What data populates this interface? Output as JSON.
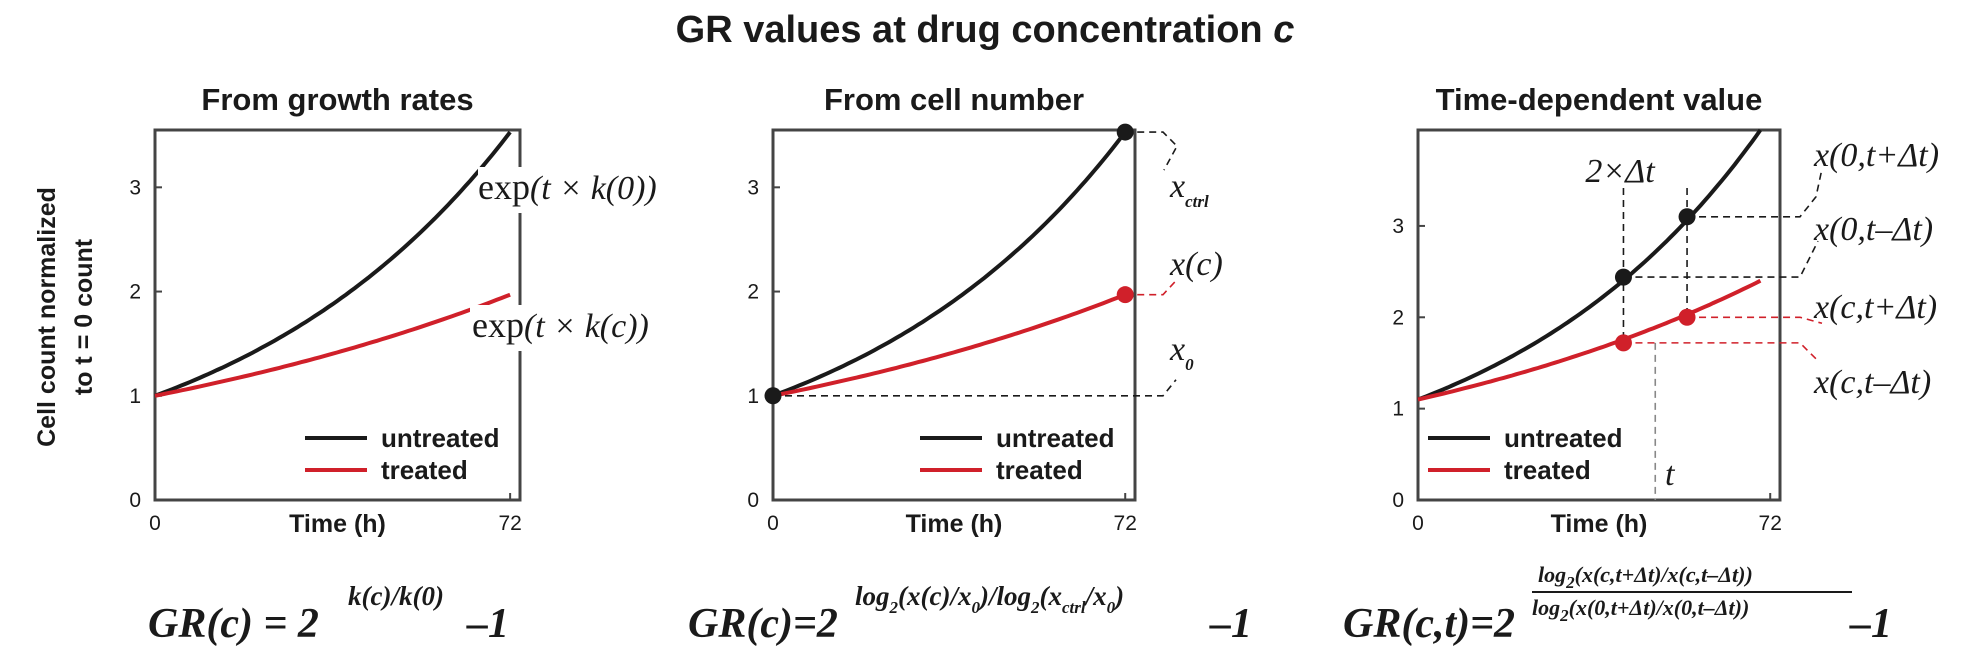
{
  "figure_title": "GR values at drug concentration c",
  "y_axis_label_line1": "Cell count normalized",
  "y_axis_label_line2": "to t = 0 count",
  "colors": {
    "untreated": "#1a1a1a",
    "treated": "#d0202a",
    "axes": "#444444"
  },
  "chart_data": [
    {
      "type": "line",
      "title": "From growth rates",
      "xlabel": "Time (h)",
      "ylabel": "Cell count normalized to t = 0 count",
      "xticks": [
        0,
        72
      ],
      "yticks": [
        0,
        1,
        2,
        3
      ],
      "xlim": [
        0,
        74
      ],
      "ylim": [
        0,
        3.55
      ],
      "legend": "bottom-right",
      "series": [
        {
          "name": "untreated",
          "x": [
            0,
            72
          ],
          "y": [
            1,
            3.53
          ],
          "curve": "exponential"
        },
        {
          "name": "treated",
          "x": [
            0,
            72
          ],
          "y": [
            1,
            1.97
          ],
          "curve": "exponential"
        }
      ],
      "annotations": [
        "exp(t × k(0))",
        "exp(t × k(c))"
      ]
    },
    {
      "type": "line",
      "title": "From cell number",
      "xlabel": "Time (h)",
      "xticks": [
        0,
        72
      ],
      "yticks": [
        0,
        1,
        2,
        3
      ],
      "xlim": [
        0,
        74
      ],
      "ylim": [
        0,
        3.55
      ],
      "legend": "bottom-right",
      "series": [
        {
          "name": "untreated",
          "x": [
            0,
            72
          ],
          "y": [
            1,
            3.53
          ],
          "curve": "exponential"
        },
        {
          "name": "treated",
          "x": [
            0,
            72
          ],
          "y": [
            1,
            1.97
          ],
          "curve": "exponential"
        }
      ],
      "markers": [
        {
          "series": "untreated",
          "x": 0,
          "y": 1
        },
        {
          "series": "untreated",
          "x": 72,
          "y": 3.53
        },
        {
          "series": "treated",
          "x": 72,
          "y": 1.97
        }
      ],
      "annotations": [
        "x_ctrl",
        "x(c)",
        "x_0"
      ]
    },
    {
      "type": "line",
      "title": "Time-dependent value",
      "xlabel": "Time (h)",
      "xticks": [
        0,
        72
      ],
      "yticks": [
        0,
        1,
        2,
        3
      ],
      "xlim": [
        0,
        74
      ],
      "ylim": [
        0,
        4.05
      ],
      "legend": "bottom-left",
      "series": [
        {
          "name": "untreated",
          "x": [
            0,
            70
          ],
          "y": [
            1.1,
            4.05
          ],
          "curve": "exponential"
        },
        {
          "name": "treated",
          "x": [
            0,
            70
          ],
          "y": [
            1.1,
            2.4
          ],
          "curve": "exponential"
        }
      ],
      "markers": [
        {
          "series": "untreated",
          "x": 42,
          "y": 2.44
        },
        {
          "series": "untreated",
          "x": 55,
          "y": 3.1
        },
        {
          "series": "treated",
          "x": 42,
          "y": 1.72
        },
        {
          "series": "treated",
          "x": 55,
          "y": 2.0
        }
      ],
      "t_marker_x": 48.5,
      "annotations": [
        "2×Δt",
        "t",
        "x(0,t+Δt)",
        "x(0,t–Δt)",
        "x(c,t+Δt)",
        "x(c,t–Δt)"
      ]
    }
  ],
  "anno_text": {
    "p1_top_a": "exp",
    "p1_top_b": "(t × k(0))",
    "p1_bot_a": "exp",
    "p1_bot_b": "(t × k(c))",
    "p2_xctrl": "x",
    "p2_xctrl_sub": "ctrl",
    "p2_xc": "x(c)",
    "p2_x0": "x",
    "p2_x0_sub": "0",
    "p3_twodt": "2×Δt",
    "p3_t": "t",
    "p3_a": "x(0,t+Δt)",
    "p3_b": "x(0,t–Δt)",
    "p3_c": "x(c,t+Δt)",
    "p3_d": "x(c,t–Δt)"
  },
  "formulas": {
    "f1_base": "GR(c) = 2",
    "f1_exp": "k(c)/k(0)",
    "f1_tail": "–1",
    "f2_base": "GR(c)=2",
    "f2_exp_a": "log",
    "f2_exp_b": "2",
    "f2_exp_c": "(x(c)/x",
    "f2_exp_d": "0",
    "f2_exp_e": ")/log",
    "f2_exp_f": "2",
    "f2_exp_g": "(x",
    "f2_exp_h": "ctrl",
    "f2_exp_i": "/x",
    "f2_exp_j": "0",
    "f2_exp_k": ")",
    "f2_tail": "–1",
    "f3_base": "GR(c,t)=2",
    "f3_num_a": "log",
    "f3_num_b": "2",
    "f3_num_c": "(x(c,t+Δt)/x(c,t–Δt))",
    "f3_den_a": "log",
    "f3_den_b": "2",
    "f3_den_c": "(x(0,t+Δt)/x(0,t–Δt))",
    "f3_tail": "–1"
  }
}
